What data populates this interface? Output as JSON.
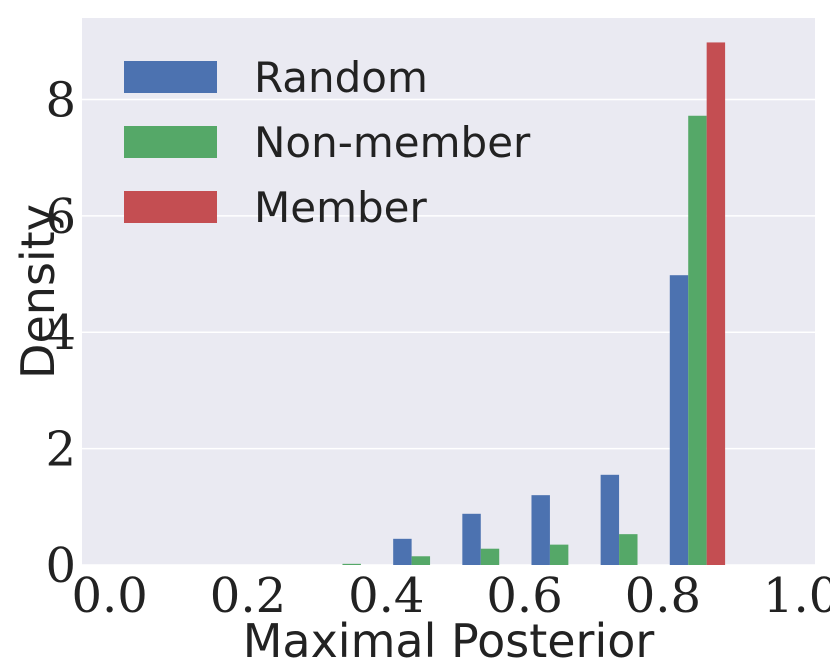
{
  "chart_data": {
    "type": "bar",
    "xlabel": "Maximal Posterior",
    "ylabel": "Density",
    "xlim": [
      -0.04,
      1.02
    ],
    "ylim": [
      0,
      9.4
    ],
    "xticks": [
      "0.0",
      "0.2",
      "0.4",
      "0.6",
      "0.8",
      "1.0"
    ],
    "xtick_values": [
      0.0,
      0.2,
      0.4,
      0.6,
      0.8,
      1.0
    ],
    "yticks": [
      "0",
      "2",
      "4",
      "6",
      "8"
    ],
    "ytick_values": [
      0,
      2,
      4,
      6,
      8
    ],
    "grid": true,
    "legend_position": "top-left",
    "bin_edges": [
      0.0,
      0.1,
      0.2,
      0.3,
      0.4,
      0.5,
      0.6,
      0.7,
      0.8,
      0.9,
      1.0
    ],
    "series": [
      {
        "name": "Random",
        "color": "#4C72B0",
        "values": [
          0,
          0,
          0,
          0,
          0.45,
          0.88,
          1.2,
          1.55,
          4.98,
          0
        ]
      },
      {
        "name": "Non-member",
        "color": "#55A868",
        "values": [
          0,
          0,
          0,
          0.02,
          0.15,
          0.28,
          0.35,
          0.53,
          7.72,
          0
        ]
      },
      {
        "name": "Member",
        "color": "#C44E52",
        "values": [
          0,
          0,
          0,
          0,
          0,
          0,
          0,
          0,
          8.98,
          0
        ]
      }
    ]
  }
}
